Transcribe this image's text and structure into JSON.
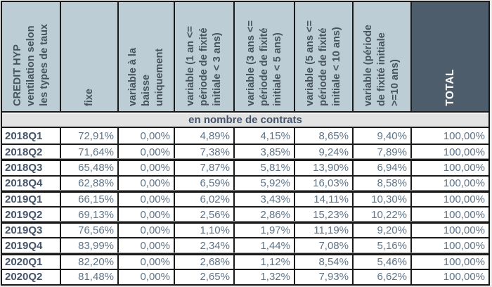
{
  "table": {
    "section_title": "en nombre de contrats",
    "columns": [
      {
        "id": "credit-hyp-title",
        "lines": [
          "CREDIT HYP",
          "ventilation selon",
          "les types de taux"
        ],
        "dark": false
      },
      {
        "id": "fixe",
        "lines": [
          "fixe"
        ],
        "dark": false
      },
      {
        "id": "variable-baisse",
        "lines": [
          "variable à la",
          "baisse",
          "uniquement"
        ],
        "dark": false
      },
      {
        "id": "variable-1-3-ans",
        "lines": [
          "variable (1 an <=",
          "période de fixité",
          "initiale < 3 ans)"
        ],
        "dark": false
      },
      {
        "id": "variable-3-5-ans",
        "lines": [
          "variable (3 ans <=",
          "période de fixité",
          "initiale < 5 ans)"
        ],
        "dark": false
      },
      {
        "id": "variable-5-10-ans",
        "lines": [
          "variable (5 ans <=",
          "période de fixité",
          "initiale < 10 ans)"
        ],
        "dark": false
      },
      {
        "id": "variable-10plus",
        "lines": [
          "variable (période",
          "de fixité initiale",
          ">=10 ans)"
        ],
        "dark": false
      },
      {
        "id": "total",
        "lines": [
          "TOTAL"
        ],
        "dark": true
      }
    ],
    "rows": [
      {
        "label": "2018Q1",
        "values": [
          "72,91%",
          "0,00%",
          "4,89%",
          "4,15%",
          "8,65%",
          "9,40%",
          "100,00%"
        ]
      },
      {
        "label": "2018Q2",
        "values": [
          "71,64%",
          "0,00%",
          "7,38%",
          "3,85%",
          "9,24%",
          "7,89%",
          "100,00%"
        ]
      },
      {
        "label": "2018Q3",
        "values": [
          "65,48%",
          "0,00%",
          "7,87%",
          "5,81%",
          "13,90%",
          "6,94%",
          "100,00%"
        ]
      },
      {
        "label": "2018Q4",
        "values": [
          "62,88%",
          "0,00%",
          "6,59%",
          "5,92%",
          "16,03%",
          "8,58%",
          "100,00%"
        ]
      },
      {
        "label": "2019Q1",
        "values": [
          "66,15%",
          "0,00%",
          "6,02%",
          "3,43%",
          "14,11%",
          "10,30%",
          "100,00%"
        ]
      },
      {
        "label": "2019Q2",
        "values": [
          "69,13%",
          "0,00%",
          "2,56%",
          "2,86%",
          "15,23%",
          "10,22%",
          "100,00%"
        ]
      },
      {
        "label": "2019Q3",
        "values": [
          "76,56%",
          "0,00%",
          "1,10%",
          "1,97%",
          "11,19%",
          "9,20%",
          "100,00%"
        ]
      },
      {
        "label": "2019Q4",
        "values": [
          "83,99%",
          "0,00%",
          "2,34%",
          "1,44%",
          "7,08%",
          "5,16%",
          "100,00%"
        ]
      },
      {
        "label": "2020Q1",
        "values": [
          "82,20%",
          "0,00%",
          "2,68%",
          "1,12%",
          "8,54%",
          "5,46%",
          "100,00%"
        ]
      },
      {
        "label": "2020Q2",
        "values": [
          "81,48%",
          "0,00%",
          "2,65%",
          "1,32%",
          "7,93%",
          "6,62%",
          "100,00%"
        ]
      }
    ],
    "thick_separator_before_row_indexes": [
      2,
      4,
      6,
      8
    ],
    "colors": {
      "header_bg": "#bccdd5",
      "header_text": "#47535e",
      "total_bg": "#4d5d6c",
      "total_text": "#ffffff",
      "band_bg": "#e3e3e3",
      "band_text": "#44546a",
      "label_text": "#44546a",
      "data_text": "#5f7487",
      "border": "#1a1a1a",
      "page_bg": "#ececec"
    }
  },
  "chart_data": {
    "type": "table",
    "title": "CREDIT HYP ventilation selon les types de taux",
    "section": "en nombre de contrats",
    "unit": "%",
    "columns": [
      "fixe",
      "variable à la baisse uniquement",
      "variable (1 an <= période de fixité initiale < 3 ans)",
      "variable (3 ans <= période de fixité initiale < 5 ans)",
      "variable (5 ans <= période de fixité initiale < 10 ans)",
      "variable (période de fixité initiale >=10 ans)",
      "TOTAL"
    ],
    "row_labels": [
      "2018Q1",
      "2018Q2",
      "2018Q3",
      "2018Q4",
      "2019Q1",
      "2019Q2",
      "2019Q3",
      "2019Q4",
      "2020Q1",
      "2020Q2"
    ],
    "values": [
      [
        72.91,
        0.0,
        4.89,
        4.15,
        8.65,
        9.4,
        100.0
      ],
      [
        71.64,
        0.0,
        7.38,
        3.85,
        9.24,
        7.89,
        100.0
      ],
      [
        65.48,
        0.0,
        7.87,
        5.81,
        13.9,
        6.94,
        100.0
      ],
      [
        62.88,
        0.0,
        6.59,
        5.92,
        16.03,
        8.58,
        100.0
      ],
      [
        66.15,
        0.0,
        6.02,
        3.43,
        14.11,
        10.3,
        100.0
      ],
      [
        69.13,
        0.0,
        2.56,
        2.86,
        15.23,
        10.22,
        100.0
      ],
      [
        76.56,
        0.0,
        1.1,
        1.97,
        11.19,
        9.2,
        100.0
      ],
      [
        83.99,
        0.0,
        2.34,
        1.44,
        7.08,
        5.16,
        100.0
      ],
      [
        82.2,
        0.0,
        2.68,
        1.12,
        8.54,
        5.46,
        100.0
      ],
      [
        81.48,
        0.0,
        2.65,
        1.32,
        7.93,
        6.62,
        100.0
      ]
    ]
  }
}
